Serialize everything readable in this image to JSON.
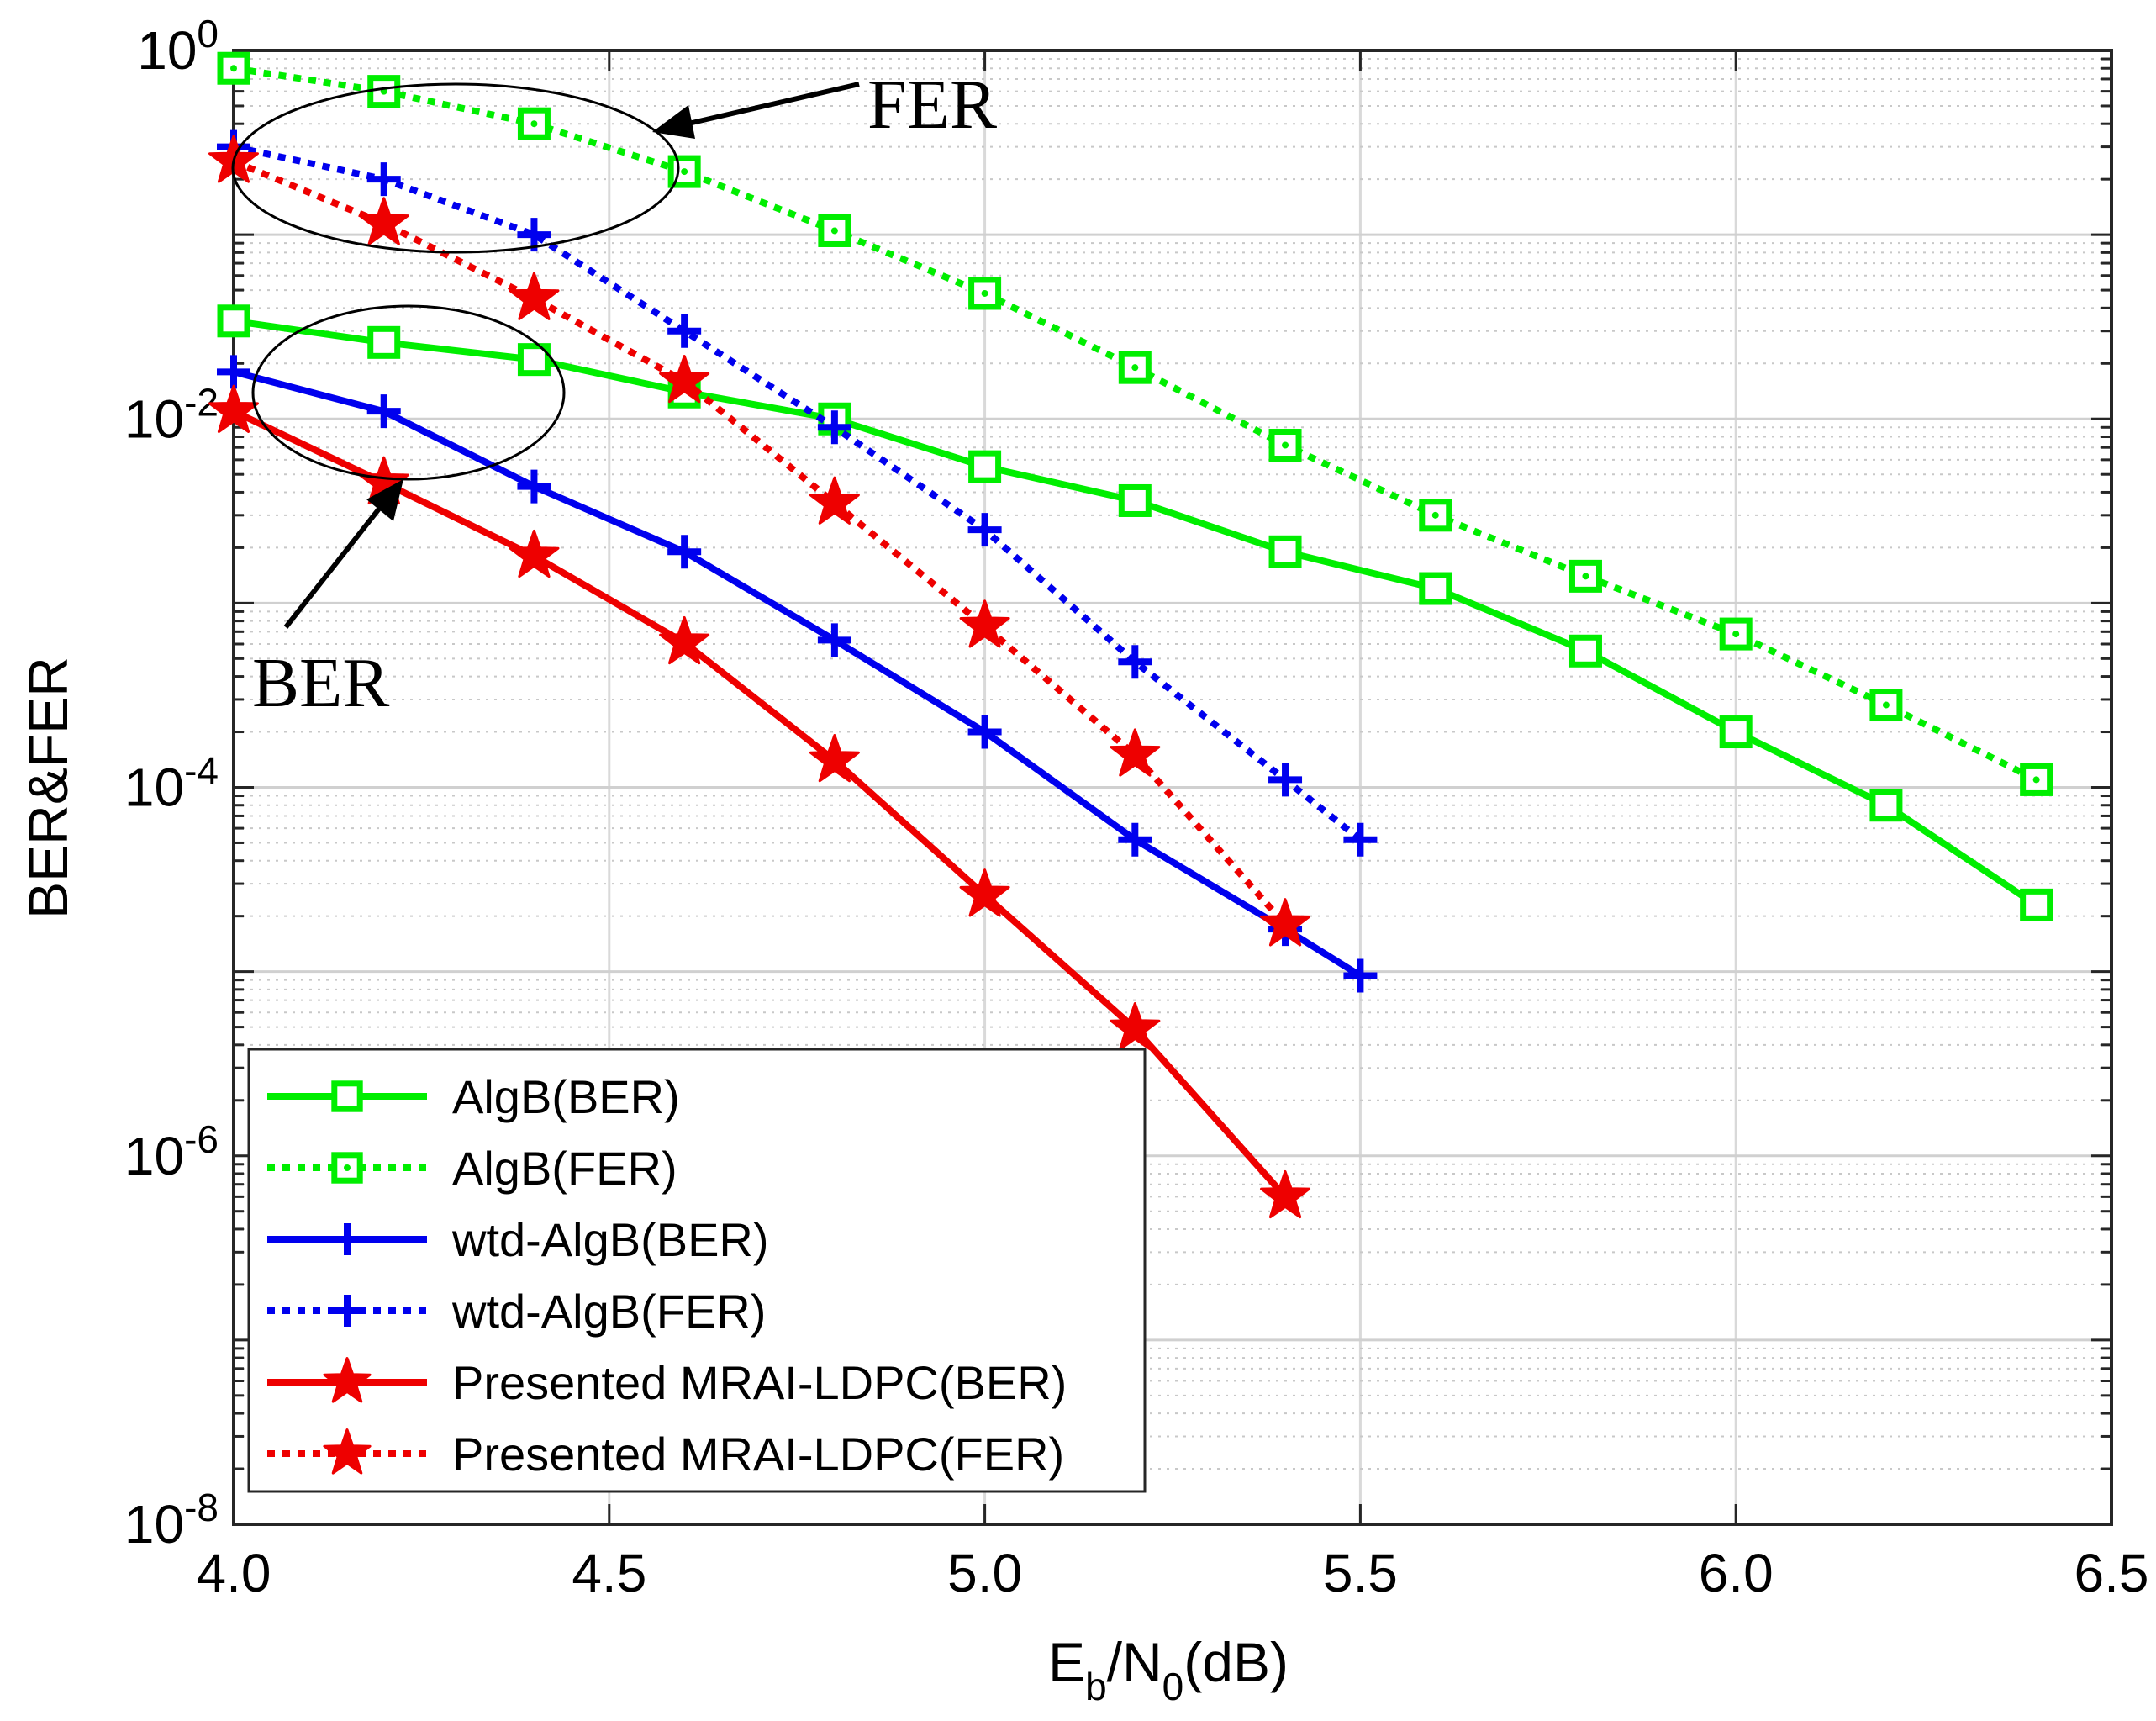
{
  "chart_data": {
    "type": "line",
    "title": "",
    "xlabel": "Eb/N0(dB)",
    "xlabel_parts": {
      "E": "E",
      "b": "b",
      "mid": "/N",
      "zero": "0",
      "tail": "(dB)"
    },
    "ylabel": "BER&FER",
    "xlim": [
      4.0,
      6.5
    ],
    "ylim": [
      1e-08,
      1
    ],
    "yscale": "log",
    "grid": true,
    "legend_position": "bottom-left",
    "x_ticks": [
      "4.0",
      "4.5",
      "5.0",
      "5.5",
      "6.0",
      "6.5"
    ],
    "y_ticks": [
      {
        "base": "10",
        "exp": "0",
        "value": 1
      },
      {
        "base": "10",
        "exp": "-2",
        "value": 0.01
      },
      {
        "base": "10",
        "exp": "-4",
        "value": 0.0001
      },
      {
        "base": "10",
        "exp": "-6",
        "value": 1e-06
      },
      {
        "base": "10",
        "exp": "-8",
        "value": 1e-08
      }
    ],
    "series": [
      {
        "name": "AlgB(BER)",
        "color": "#00ee00",
        "style": "solid",
        "marker": "square",
        "x": [
          4.0,
          4.2,
          4.4,
          4.6,
          4.8,
          5.0,
          5.2,
          5.4,
          5.6,
          5.8,
          6.0,
          6.2,
          6.4
        ],
        "y": [
          0.034,
          0.026,
          0.021,
          0.014,
          0.01,
          0.0055,
          0.0036,
          0.0019,
          0.0012,
          0.00055,
          0.0002,
          8e-05,
          2.3e-05
        ]
      },
      {
        "name": "AlgB(FER)",
        "color": "#00ee00",
        "style": "dotted",
        "marker": "square-dot",
        "x": [
          4.0,
          4.2,
          4.4,
          4.6,
          4.8,
          5.0,
          5.2,
          5.4,
          5.6,
          5.8,
          6.0,
          6.2,
          6.4
        ],
        "y": [
          0.8,
          0.6,
          0.4,
          0.22,
          0.105,
          0.048,
          0.019,
          0.0072,
          0.003,
          0.0014,
          0.00068,
          0.00028,
          0.00011
        ]
      },
      {
        "name": "wtd-AlgB(BER)",
        "color": "#0000ee",
        "style": "solid",
        "marker": "plus",
        "x": [
          4.0,
          4.2,
          4.4,
          4.6,
          4.8,
          5.0,
          5.2,
          5.4,
          5.5
        ],
        "y": [
          0.018,
          0.011,
          0.0043,
          0.0019,
          0.00063,
          0.0002,
          5.2e-05,
          1.7e-05,
          9.5e-06
        ]
      },
      {
        "name": "wtd-AlgB(FER)",
        "color": "#0000ee",
        "style": "dotted",
        "marker": "plus",
        "x": [
          4.0,
          4.2,
          4.4,
          4.6,
          4.8,
          5.0,
          5.2,
          5.4,
          5.5
        ],
        "y": [
          0.3,
          0.2,
          0.1,
          0.03,
          0.009,
          0.0025,
          0.00048,
          0.00011,
          5.2e-05
        ]
      },
      {
        "name": "Presented MRAI-LDPC(BER)",
        "color": "#ee0000",
        "style": "solid",
        "marker": "star",
        "x": [
          4.0,
          4.2,
          4.4,
          4.6,
          4.8,
          5.0,
          5.2,
          5.4
        ],
        "y": [
          0.011,
          0.0045,
          0.0018,
          0.00061,
          0.00014,
          2.6e-05,
          4.9e-06,
          6e-07
        ]
      },
      {
        "name": "Presented MRAI-LDPC(FER)",
        "color": "#ee0000",
        "style": "dotted",
        "marker": "star",
        "x": [
          4.0,
          4.2,
          4.4,
          4.6,
          4.8,
          5.0,
          5.2,
          5.4
        ],
        "y": [
          0.25,
          0.115,
          0.045,
          0.016,
          0.0035,
          0.00075,
          0.00015,
          1.8e-05
        ]
      }
    ],
    "annotations": [
      {
        "label": "FER",
        "target": "FER ellipse"
      },
      {
        "label": "BER",
        "target": "BER ellipse"
      }
    ]
  }
}
